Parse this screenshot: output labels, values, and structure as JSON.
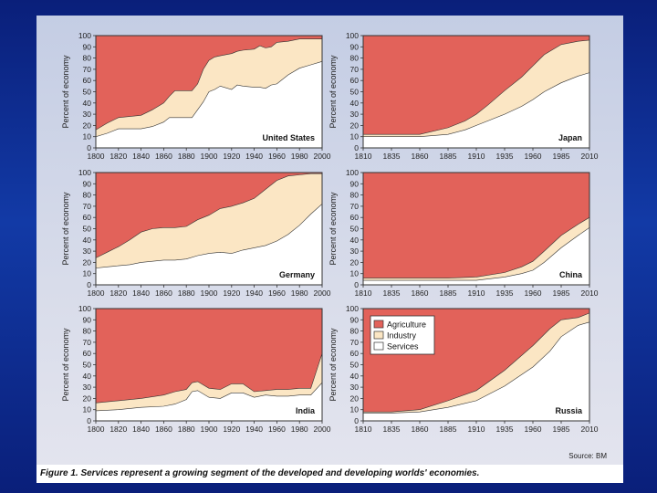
{
  "caption": "Figure 1. Services represent a growing segment of the developed and developing worlds' economies.",
  "source": "Source: BM",
  "colors": {
    "agriculture": "#e2625a",
    "industry": "#fbe6c4",
    "services": "#ffffff",
    "frame": "#333333"
  },
  "chart_data": [
    {
      "type": "area",
      "title": "United States",
      "ylabel": "Percent of economy",
      "ylim": [
        0,
        100
      ],
      "xticks": [
        "1800",
        "1820",
        "1840",
        "1860",
        "1880",
        "1900",
        "1920",
        "1940",
        "1960",
        "1980",
        "2000"
      ],
      "x": [
        1800,
        1810,
        1820,
        1830,
        1840,
        1850,
        1860,
        1865,
        1870,
        1880,
        1885,
        1890,
        1895,
        1900,
        1905,
        1910,
        1920,
        1925,
        1930,
        1940,
        1945,
        1950,
        1955,
        1960,
        1970,
        1980,
        1990,
        2000
      ],
      "series": [
        {
          "name": "Services",
          "values": [
            10,
            13,
            17,
            17,
            17,
            19,
            23,
            27,
            27,
            27,
            27,
            34,
            41,
            50,
            52,
            55,
            52,
            56,
            55,
            54,
            54,
            53,
            56,
            57,
            65,
            71,
            74,
            77
          ]
        },
        {
          "name": "Services+Industry",
          "values": [
            16,
            22,
            27,
            28,
            29,
            34,
            40,
            46,
            51,
            51,
            51,
            57,
            70,
            78,
            81,
            82,
            84,
            86,
            87,
            88,
            91,
            89,
            90,
            94,
            95,
            97,
            97,
            97
          ]
        }
      ]
    },
    {
      "type": "area",
      "title": "Japan",
      "ylabel": "Percent of economy",
      "ylim": [
        0,
        100
      ],
      "xticks": [
        "1810",
        "1835",
        "1860",
        "1885",
        "1910",
        "1935",
        "1960",
        "1985",
        "2010"
      ],
      "x": [
        1810,
        1835,
        1860,
        1885,
        1900,
        1910,
        1920,
        1935,
        1950,
        1960,
        1970,
        1985,
        2000,
        2010
      ],
      "series": [
        {
          "name": "Services",
          "values": [
            10,
            10,
            10,
            12,
            16,
            20,
            24,
            30,
            37,
            43,
            50,
            58,
            64,
            67
          ]
        },
        {
          "name": "Services+Industry",
          "values": [
            12,
            12,
            12,
            18,
            24,
            30,
            38,
            51,
            63,
            73,
            83,
            92,
            95,
            96
          ]
        }
      ]
    },
    {
      "type": "area",
      "title": "Germany",
      "ylabel": "Percent of economy",
      "ylim": [
        0,
        100
      ],
      "xticks": [
        "1800",
        "1820",
        "1840",
        "1860",
        "1880",
        "1900",
        "1920",
        "1940",
        "1960",
        "1980",
        "2000"
      ],
      "x": [
        1800,
        1810,
        1820,
        1830,
        1840,
        1850,
        1860,
        1870,
        1880,
        1890,
        1900,
        1910,
        1920,
        1930,
        1940,
        1950,
        1960,
        1970,
        1980,
        1990,
        2000
      ],
      "series": [
        {
          "name": "Services",
          "values": [
            15,
            16,
            17,
            18,
            20,
            21,
            22,
            22,
            23,
            26,
            28,
            29,
            28,
            31,
            33,
            35,
            39,
            45,
            53,
            63,
            72
          ]
        },
        {
          "name": "Services+Industry",
          "values": [
            24,
            29,
            34,
            40,
            47,
            50,
            51,
            51,
            52,
            58,
            62,
            68,
            70,
            73,
            77,
            85,
            93,
            97,
            98,
            99,
            99
          ]
        }
      ]
    },
    {
      "type": "area",
      "title": "China",
      "ylabel": "Percent of economy",
      "ylim": [
        0,
        100
      ],
      "xticks": [
        "1810",
        "1835",
        "1860",
        "1885",
        "1910",
        "1935",
        "1960",
        "1985",
        "2010"
      ],
      "x": [
        1810,
        1835,
        1860,
        1885,
        1910,
        1935,
        1950,
        1960,
        1970,
        1985,
        2000,
        2010
      ],
      "series": [
        {
          "name": "Services",
          "values": [
            4,
            4,
            4,
            4,
            4,
            7,
            10,
            13,
            20,
            33,
            44,
            51
          ]
        },
        {
          "name": "Services+Industry",
          "values": [
            6,
            6,
            6,
            6,
            7,
            11,
            16,
            21,
            30,
            44,
            54,
            60
          ]
        }
      ]
    },
    {
      "type": "area",
      "title": "India",
      "ylabel": "Percent of economy",
      "ylim": [
        0,
        100
      ],
      "xticks": [
        "1800",
        "1820",
        "1840",
        "1860",
        "1880",
        "1900",
        "1920",
        "1940",
        "1960",
        "1980",
        "2000"
      ],
      "x": [
        1800,
        1820,
        1840,
        1860,
        1870,
        1880,
        1885,
        1890,
        1900,
        1910,
        1920,
        1930,
        1940,
        1950,
        1960,
        1970,
        1980,
        1990,
        2000
      ],
      "series": [
        {
          "name": "Services",
          "values": [
            9,
            10,
            12,
            13,
            15,
            19,
            26,
            27,
            21,
            20,
            25,
            25,
            21,
            23,
            22,
            22,
            23,
            23,
            34
          ]
        },
        {
          "name": "Services+Industry",
          "values": [
            16,
            18,
            20,
            23,
            26,
            28,
            34,
            35,
            29,
            28,
            33,
            33,
            26,
            27,
            28,
            28,
            29,
            29,
            60
          ]
        }
      ]
    },
    {
      "type": "area",
      "title": "Russia",
      "ylabel": "Percent of economy",
      "ylim": [
        0,
        100
      ],
      "xticks": [
        "1810",
        "1835",
        "1860",
        "1885",
        "1910",
        "1935",
        "1960",
        "1985",
        "2010"
      ],
      "x": [
        1810,
        1835,
        1860,
        1885,
        1910,
        1935,
        1960,
        1975,
        1985,
        2000,
        2010
      ],
      "series": [
        {
          "name": "Services",
          "values": [
            7,
            7,
            8,
            12,
            18,
            31,
            48,
            62,
            75,
            85,
            88
          ]
        },
        {
          "name": "Services+Industry",
          "values": [
            8,
            8,
            10,
            18,
            27,
            45,
            67,
            82,
            90,
            92,
            96
          ]
        }
      ]
    }
  ],
  "legend": [
    {
      "label": "Agriculture",
      "color": "#e2625a"
    },
    {
      "label": "Industry",
      "color": "#fbe6c4"
    },
    {
      "label": "Services",
      "color": "#ffffff"
    }
  ],
  "yticks": [
    0,
    10,
    20,
    30,
    40,
    50,
    60,
    70,
    80,
    90,
    100
  ]
}
